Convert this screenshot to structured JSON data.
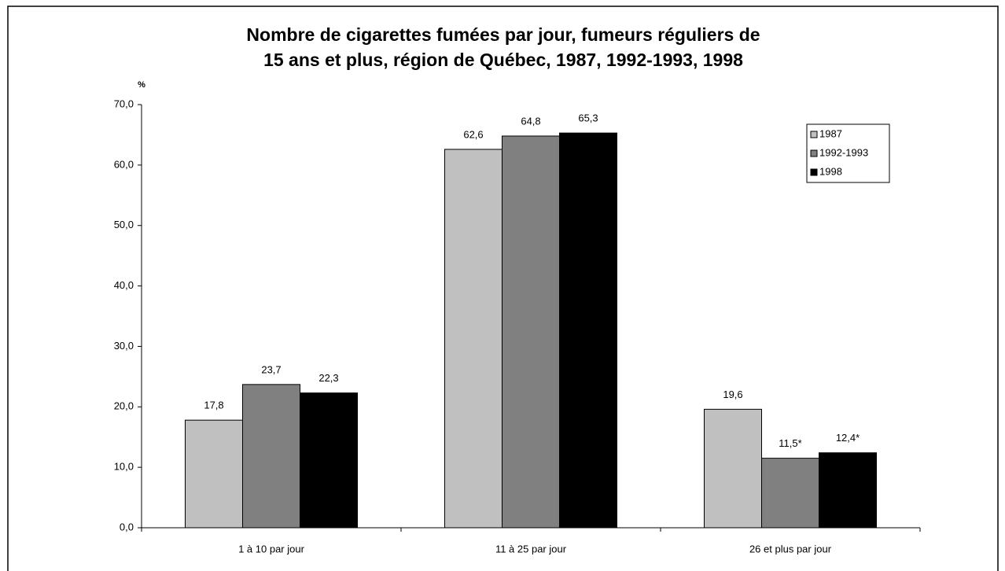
{
  "chart_data": {
    "type": "bar",
    "title": [
      "Nombre de cigarettes fumées par jour, fumeurs réguliers de",
      "15 ans et plus, région de Québec, 1987, 1992-1993, 1998"
    ],
    "y_label": "%",
    "categories": [
      "1 à 10 par jour",
      "11 à 25 par jour",
      "26 et plus par jour"
    ],
    "series": [
      {
        "name": "1987",
        "color": "#c0c0c0",
        "values": [
          17.8,
          62.6,
          19.6
        ],
        "value_labels": [
          "17,8",
          "62,6",
          "19,6"
        ]
      },
      {
        "name": "1992-1993",
        "color": "#808080",
        "values": [
          23.7,
          64.8,
          11.5
        ],
        "value_labels": [
          "23,7",
          "64,8",
          "11,5*"
        ]
      },
      {
        "name": "1998",
        "color": "#000000",
        "values": [
          22.3,
          65.3,
          12.4
        ],
        "value_labels": [
          "22,3",
          "65,3",
          "12,4*"
        ]
      }
    ],
    "ylim": [
      0,
      70
    ],
    "yticks": [
      {
        "value": 0,
        "label": "0,0"
      },
      {
        "value": 10,
        "label": "10,0"
      },
      {
        "value": 20,
        "label": "20,0"
      },
      {
        "value": 30,
        "label": "30,0"
      },
      {
        "value": 40,
        "label": "40,0"
      },
      {
        "value": 50,
        "label": "50,0"
      },
      {
        "value": 60,
        "label": "60,0"
      },
      {
        "value": 70,
        "label": "70,0"
      }
    ],
    "legend": "top-right"
  }
}
